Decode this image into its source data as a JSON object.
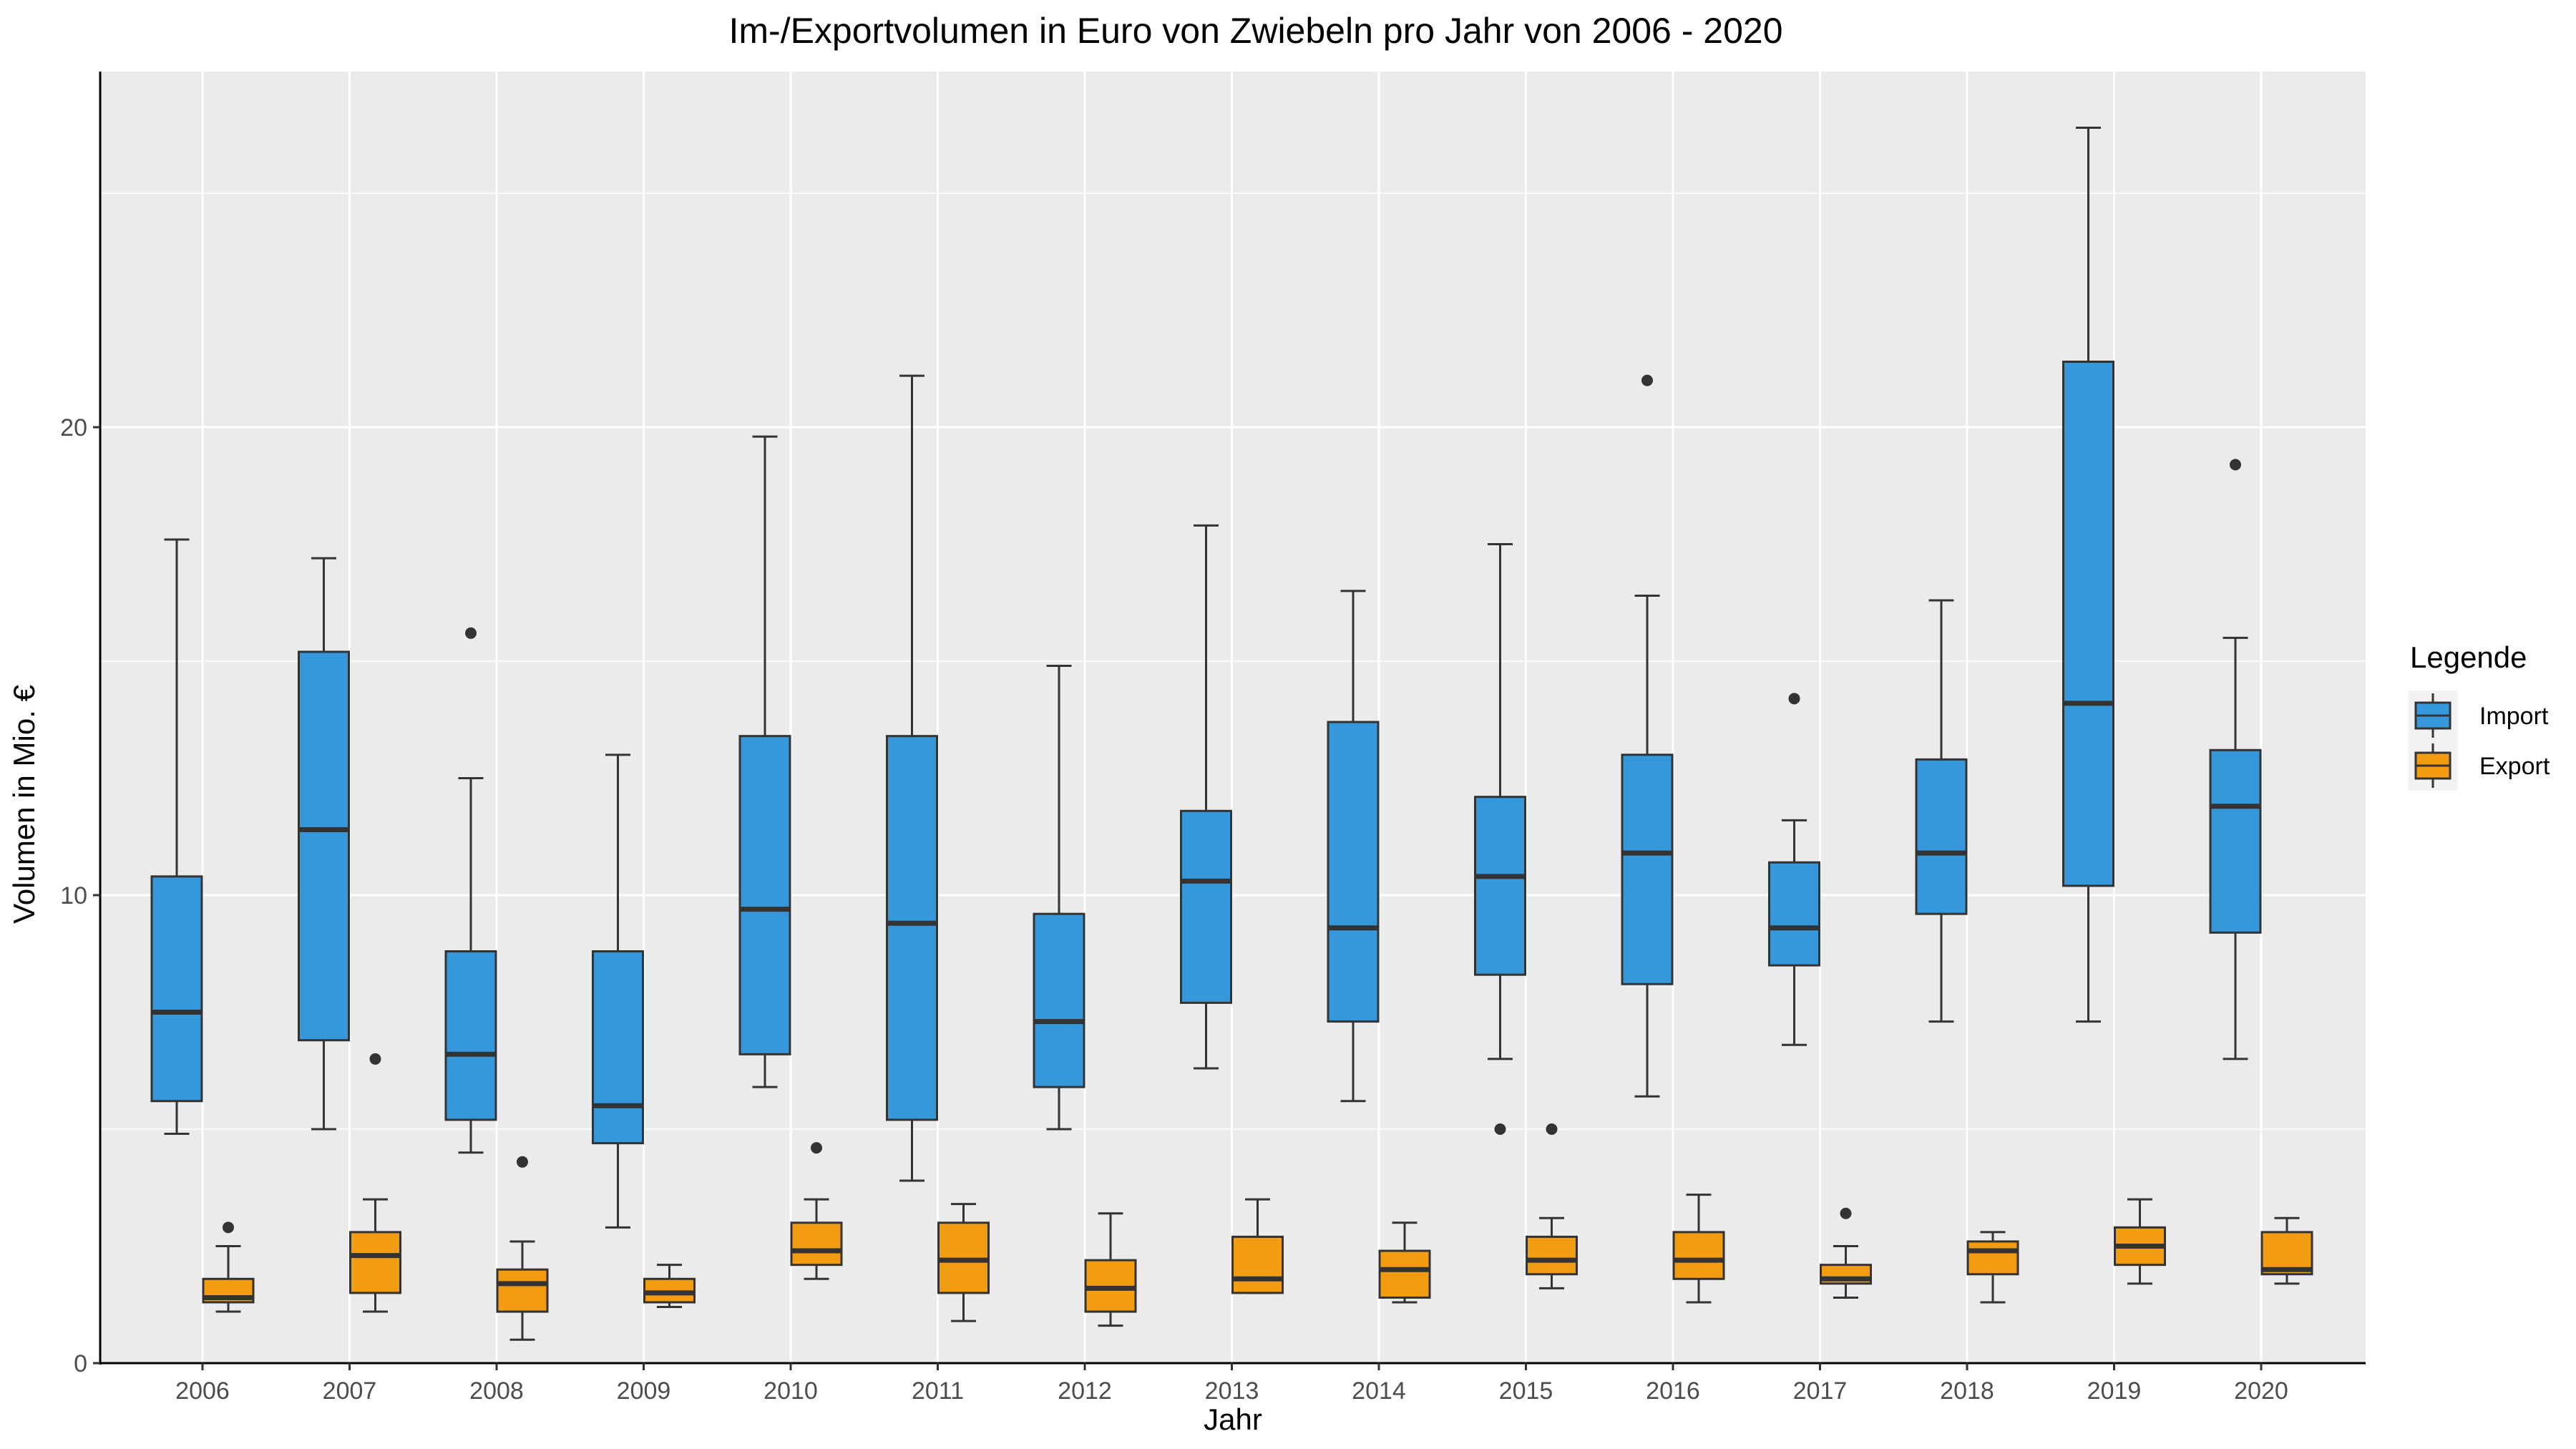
{
  "chart_data": {
    "type": "boxplot",
    "title": "Im-/Exportvolumen in Euro von Zwiebeln pro Jahr von 2006 - 2020",
    "xlabel": "Jahr",
    "ylabel": "Volumen in Mio. €",
    "ylim": [
      0,
      27.6
    ],
    "y_ticks": [
      0,
      10,
      20
    ],
    "grid": true,
    "legend": {
      "title": "Legende",
      "placement": "right",
      "entries": [
        {
          "name": "Import",
          "color": "#3498db"
        },
        {
          "name": "Export",
          "color": "#f39c12"
        }
      ]
    },
    "categories": [
      "2006",
      "2007",
      "2008",
      "2009",
      "2010",
      "2011",
      "2012",
      "2013",
      "2014",
      "2015",
      "2016",
      "2017",
      "2018",
      "2019",
      "2020"
    ],
    "series": [
      {
        "name": "Import",
        "color": "#3498db",
        "boxes": [
          {
            "whisker_low": 4.9,
            "q1": 5.6,
            "median": 7.5,
            "q3": 10.4,
            "whisker_high": 17.6,
            "outliers": []
          },
          {
            "whisker_low": 5.0,
            "q1": 6.9,
            "median": 11.4,
            "q3": 15.2,
            "whisker_high": 17.2,
            "outliers": []
          },
          {
            "whisker_low": 4.5,
            "q1": 5.2,
            "median": 6.6,
            "q3": 8.8,
            "whisker_high": 12.5,
            "outliers": [
              15.6
            ]
          },
          {
            "whisker_low": 2.9,
            "q1": 4.7,
            "median": 5.5,
            "q3": 8.8,
            "whisker_high": 13.0,
            "outliers": []
          },
          {
            "whisker_low": 5.9,
            "q1": 6.6,
            "median": 9.7,
            "q3": 13.4,
            "whisker_high": 19.8,
            "outliers": []
          },
          {
            "whisker_low": 3.9,
            "q1": 5.2,
            "median": 9.4,
            "q3": 13.4,
            "whisker_high": 21.1,
            "outliers": []
          },
          {
            "whisker_low": 5.0,
            "q1": 5.9,
            "median": 7.3,
            "q3": 9.6,
            "whisker_high": 14.9,
            "outliers": []
          },
          {
            "whisker_low": 6.3,
            "q1": 7.7,
            "median": 10.3,
            "q3": 11.8,
            "whisker_high": 17.9,
            "outliers": []
          },
          {
            "whisker_low": 5.6,
            "q1": 7.3,
            "median": 9.3,
            "q3": 13.7,
            "whisker_high": 16.5,
            "outliers": []
          },
          {
            "whisker_low": 6.5,
            "q1": 8.3,
            "median": 10.4,
            "q3": 12.1,
            "whisker_high": 17.5,
            "outliers": [
              5.0
            ]
          },
          {
            "whisker_low": 5.7,
            "q1": 8.1,
            "median": 10.9,
            "q3": 13.0,
            "whisker_high": 16.4,
            "outliers": [
              21.0
            ]
          },
          {
            "whisker_low": 6.8,
            "q1": 8.5,
            "median": 9.3,
            "q3": 10.7,
            "whisker_high": 11.6,
            "outliers": [
              14.2
            ]
          },
          {
            "whisker_low": 7.3,
            "q1": 9.6,
            "median": 10.9,
            "q3": 12.9,
            "whisker_high": 16.3,
            "outliers": []
          },
          {
            "whisker_low": 7.3,
            "q1": 10.2,
            "median": 14.1,
            "q3": 21.4,
            "whisker_high": 26.4,
            "outliers": []
          },
          {
            "whisker_low": 6.5,
            "q1": 9.2,
            "median": 11.9,
            "q3": 13.1,
            "whisker_high": 15.5,
            "outliers": [
              19.2
            ]
          }
        ]
      },
      {
        "name": "Export",
        "color": "#f39c12",
        "boxes": [
          {
            "whisker_low": 1.1,
            "q1": 1.3,
            "median": 1.4,
            "q3": 1.8,
            "whisker_high": 2.5,
            "outliers": [
              2.9
            ]
          },
          {
            "whisker_low": 1.1,
            "q1": 1.5,
            "median": 2.3,
            "q3": 2.8,
            "whisker_high": 3.5,
            "outliers": [
              6.5
            ]
          },
          {
            "whisker_low": 0.5,
            "q1": 1.1,
            "median": 1.7,
            "q3": 2.0,
            "whisker_high": 2.6,
            "outliers": [
              4.3
            ]
          },
          {
            "whisker_low": 1.2,
            "q1": 1.3,
            "median": 1.5,
            "q3": 1.8,
            "whisker_high": 2.1,
            "outliers": []
          },
          {
            "whisker_low": 1.8,
            "q1": 2.1,
            "median": 2.4,
            "q3": 3.0,
            "whisker_high": 3.5,
            "outliers": [
              4.6
            ]
          },
          {
            "whisker_low": 0.9,
            "q1": 1.5,
            "median": 2.2,
            "q3": 3.0,
            "whisker_high": 3.4,
            "outliers": []
          },
          {
            "whisker_low": 0.8,
            "q1": 1.1,
            "median": 1.6,
            "q3": 2.2,
            "whisker_high": 3.2,
            "outliers": []
          },
          {
            "whisker_low": 1.5,
            "q1": 1.5,
            "median": 1.8,
            "q3": 2.7,
            "whisker_high": 3.5,
            "outliers": []
          },
          {
            "whisker_low": 1.3,
            "q1": 1.4,
            "median": 2.0,
            "q3": 2.4,
            "whisker_high": 3.0,
            "outliers": []
          },
          {
            "whisker_low": 1.6,
            "q1": 1.9,
            "median": 2.2,
            "q3": 2.7,
            "whisker_high": 3.1,
            "outliers": [
              5.0
            ]
          },
          {
            "whisker_low": 1.3,
            "q1": 1.8,
            "median": 2.2,
            "q3": 2.8,
            "whisker_high": 3.6,
            "outliers": []
          },
          {
            "whisker_low": 1.4,
            "q1": 1.7,
            "median": 1.8,
            "q3": 2.1,
            "whisker_high": 2.5,
            "outliers": [
              3.2
            ]
          },
          {
            "whisker_low": 1.3,
            "q1": 1.9,
            "median": 2.4,
            "q3": 2.6,
            "whisker_high": 2.8,
            "outliers": []
          },
          {
            "whisker_low": 1.7,
            "q1": 2.1,
            "median": 2.5,
            "q3": 2.9,
            "whisker_high": 3.5,
            "outliers": []
          },
          {
            "whisker_low": 1.7,
            "q1": 1.9,
            "median": 2.0,
            "q3": 2.8,
            "whisker_high": 3.1,
            "outliers": []
          }
        ]
      }
    ]
  }
}
